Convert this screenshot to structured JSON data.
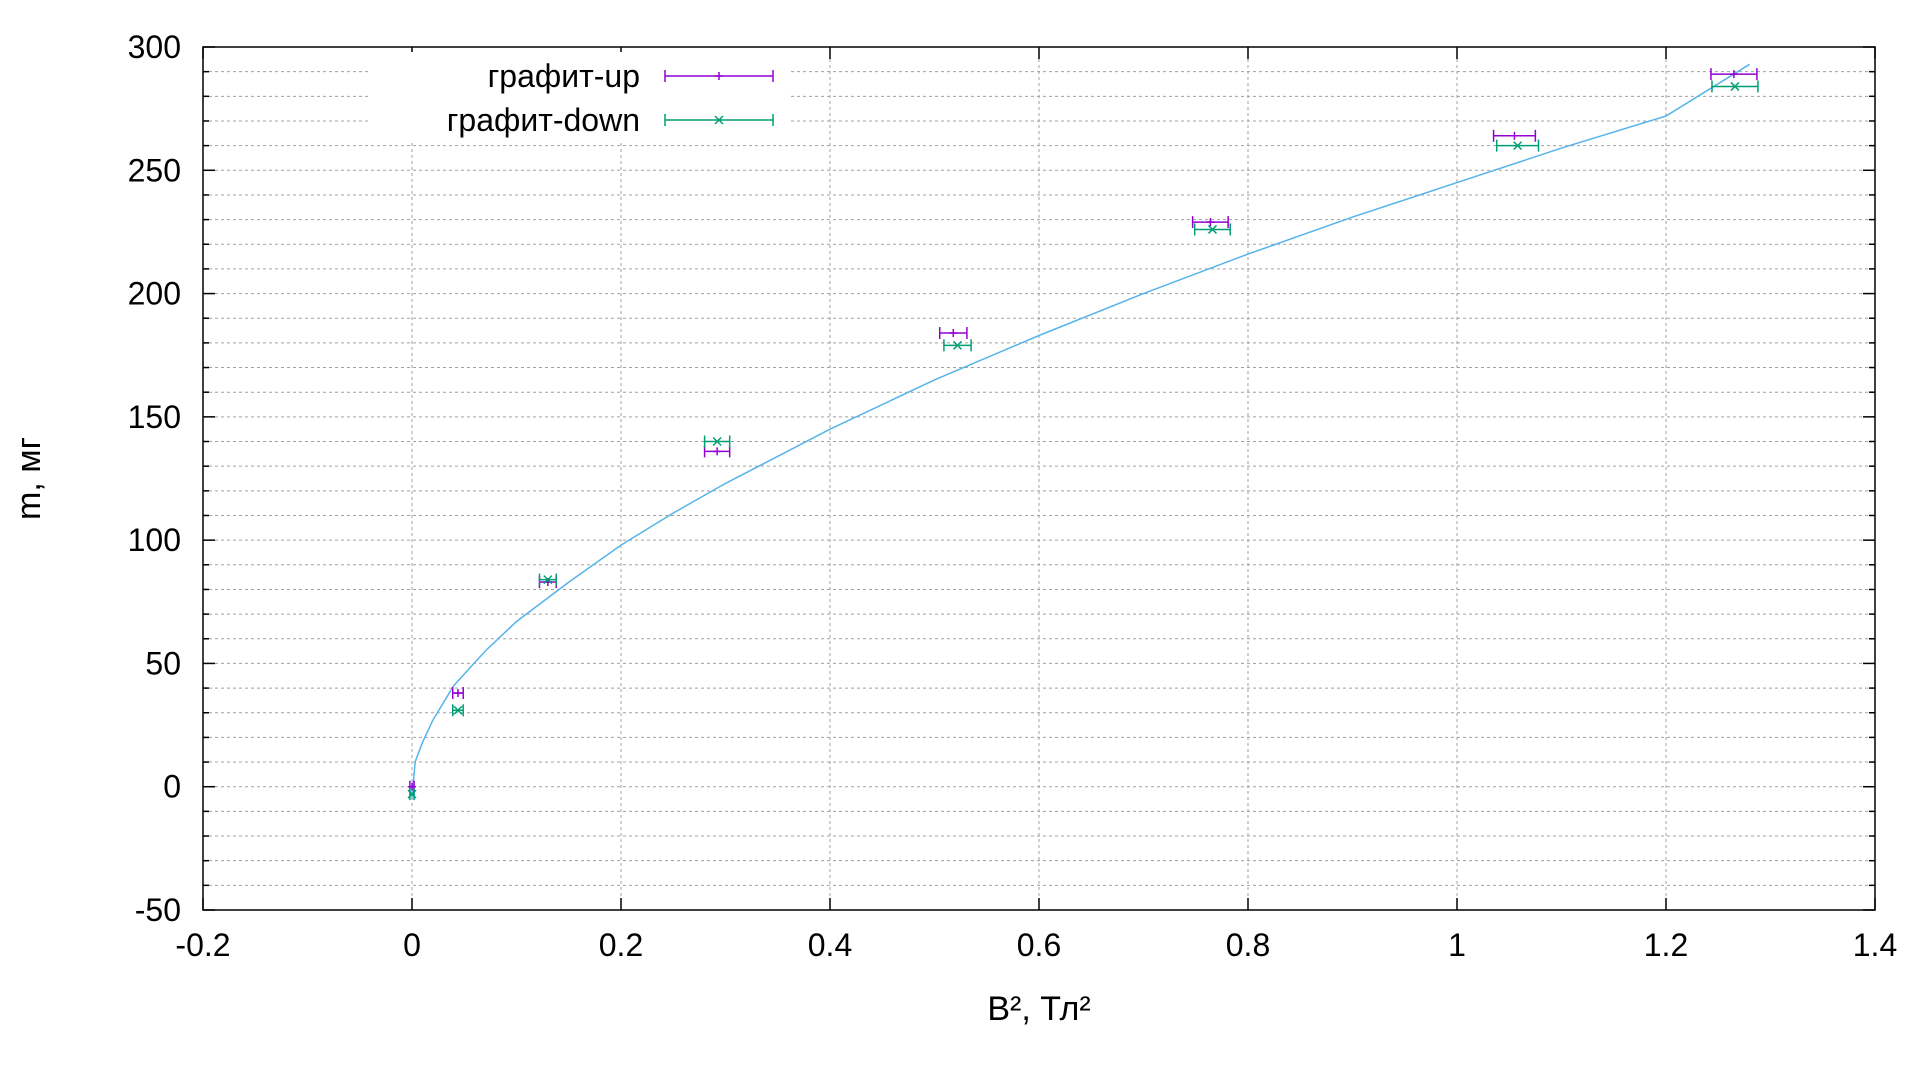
{
  "chart_data": {
    "type": "scatter",
    "xlabel": "B², Тл²",
    "ylabel": "m, мг",
    "xlim": [
      -0.2,
      1.4
    ],
    "ylim": [
      -50,
      300
    ],
    "x_ticks": [
      "-0.2",
      "0",
      "0.2",
      "0.4",
      "0.6",
      "0.8",
      "1",
      "1.2",
      "1.4"
    ],
    "y_ticks": [
      "-50",
      "0",
      "50",
      "100",
      "150",
      "200",
      "250",
      "300"
    ],
    "grid": true,
    "legend_position": "top-left",
    "series": [
      {
        "name": "графит-up",
        "color": "#9400d3",
        "marker": "plus",
        "x": [
          0.0,
          0.044,
          0.13,
          0.292,
          0.518,
          0.764,
          1.055,
          1.265
        ],
        "y": [
          0,
          38,
          83,
          136,
          184,
          229,
          264,
          289
        ],
        "xerr": [
          0.002,
          0.005,
          0.008,
          0.012,
          0.013,
          0.017,
          0.02,
          0.022
        ]
      },
      {
        "name": "графит-down",
        "color": "#009e73",
        "marker": "cross",
        "x": [
          0.0,
          0.044,
          0.13,
          0.292,
          0.522,
          0.766,
          1.058,
          1.266
        ],
        "y": [
          -3,
          31,
          84,
          140,
          179,
          226,
          260,
          284
        ],
        "xerr": [
          0.002,
          0.005,
          0.008,
          0.012,
          0.013,
          0.017,
          0.02,
          0.022
        ]
      },
      {
        "type": "line",
        "color": "#56b4e9",
        "x": [
          0.0,
          0.003,
          0.01,
          0.02,
          0.04,
          0.07,
          0.1,
          0.15,
          0.2,
          0.25,
          0.3,
          0.35,
          0.4,
          0.5,
          0.6,
          0.7,
          0.8,
          0.9,
          1.0,
          1.1,
          1.2,
          1.28
        ],
        "y": [
          -5,
          10,
          18,
          27,
          41,
          55,
          67,
          83,
          98,
          111,
          123,
          134,
          145,
          165,
          183,
          200,
          216,
          231,
          245,
          259,
          272,
          293
        ]
      }
    ]
  }
}
